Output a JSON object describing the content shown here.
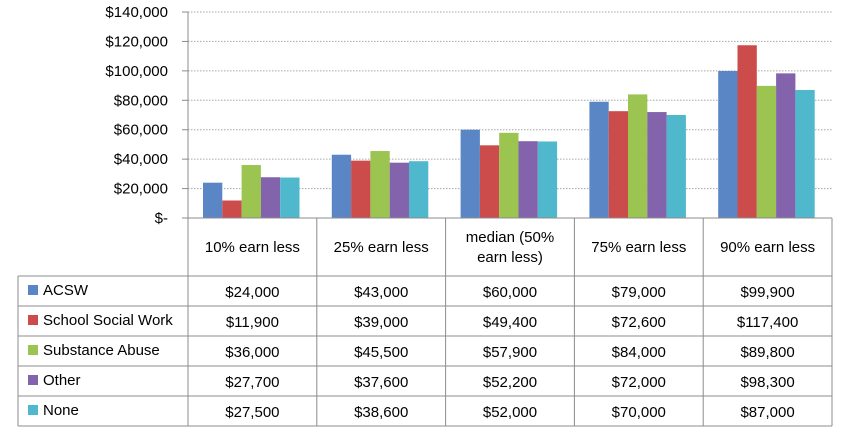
{
  "chart_data": {
    "type": "bar",
    "categories": [
      "10% earn less",
      "25% earn less",
      "median (50% earn less)",
      "75% earn less",
      "90% earn less"
    ],
    "category_lines": [
      [
        "10% earn less"
      ],
      [
        "25% earn less"
      ],
      [
        "median (50%",
        "earn less)"
      ],
      [
        "75% earn less"
      ],
      [
        "90% earn less"
      ]
    ],
    "series": [
      {
        "name": "ACSW",
        "color": "#5B86C6",
        "values": [
          24000,
          43000,
          60000,
          79000,
          99900
        ],
        "labels": [
          "$24,000",
          "$43,000",
          "$60,000",
          "$79,000",
          "$99,900"
        ]
      },
      {
        "name": "School Social Work",
        "color": "#CC4B4B",
        "values": [
          11900,
          39000,
          49400,
          72600,
          117400
        ],
        "labels": [
          "$11,900",
          "$39,000",
          "$49,400",
          "$72,600",
          "$117,400"
        ]
      },
      {
        "name": "Substance Abuse",
        "color": "#9BC450",
        "values": [
          36000,
          45500,
          57900,
          84000,
          89800
        ],
        "labels": [
          "$36,000",
          "$45,500",
          "$57,900",
          "$84,000",
          "$89,800"
        ]
      },
      {
        "name": "Other",
        "color": "#8363AC",
        "values": [
          27700,
          37600,
          52200,
          72000,
          98300
        ],
        "labels": [
          "$27,700",
          "$37,600",
          "$52,200",
          "$72,000",
          "$98,300"
        ]
      },
      {
        "name": "None",
        "color": "#4FB8CC",
        "values": [
          27500,
          38600,
          52000,
          70000,
          87000
        ],
        "labels": [
          "$27,500",
          "$38,600",
          "$52,000",
          "$70,000",
          "$87,000"
        ]
      }
    ],
    "y_ticks": [
      {
        "value": 140000,
        "label": "$140,000"
      },
      {
        "value": 120000,
        "label": "$120,000"
      },
      {
        "value": 100000,
        "label": "$100,000"
      },
      {
        "value": 80000,
        "label": "$80,000"
      },
      {
        "value": 60000,
        "label": "$60,000"
      },
      {
        "value": 40000,
        "label": "$40,000"
      },
      {
        "value": 20000,
        "label": "$20,000"
      },
      {
        "value": 0,
        "label": "$-"
      }
    ],
    "ylim": [
      0,
      140000
    ],
    "grid": true,
    "grid_color": "#A6A6A6",
    "legend": "data-table"
  }
}
